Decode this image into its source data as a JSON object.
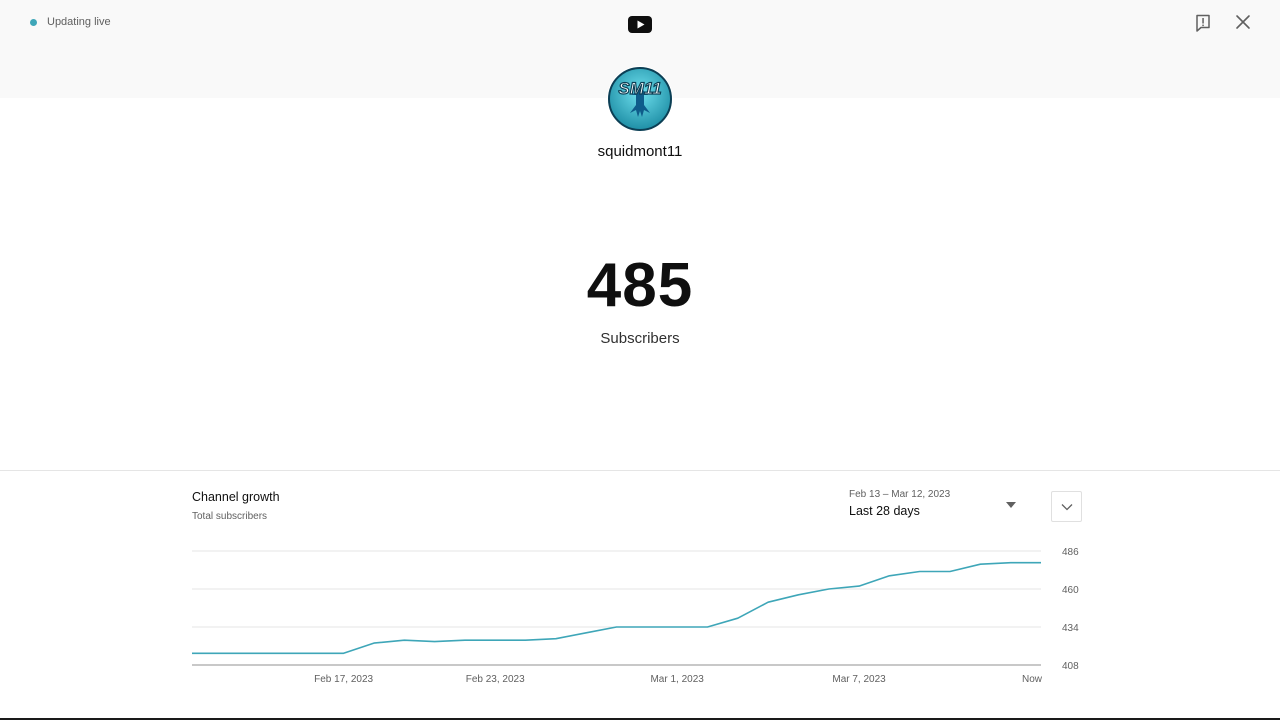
{
  "header": {
    "status_text": "Updating live",
    "status_color": "#3ea6b8",
    "logo_icon": "youtube-icon",
    "feedback_icon": "feedback-icon",
    "close_icon": "close-icon"
  },
  "channel": {
    "name": "squidmont11",
    "avatar_text": "SM11",
    "subscriber_count": "485",
    "subscriber_label": "Subscribers"
  },
  "growth": {
    "title": "Channel growth",
    "subtitle": "Total subscribers",
    "date_range": "Feb 13 – Mar 12, 2023",
    "range_label": "Last 28 days",
    "expand_icon": "chevron-down-icon"
  },
  "chart_data": {
    "type": "line",
    "title": "Channel growth",
    "ylabel": "Total subscribers",
    "ylim": [
      408,
      486
    ],
    "y_ticks": [
      408,
      434,
      460,
      486
    ],
    "x_tick_labels": [
      "Feb 17, 2023",
      "Feb 23, 2023",
      "Mar 1, 2023",
      "Mar 7, 2023",
      "Now"
    ],
    "x_tick_index": [
      5,
      10,
      16,
      22,
      28
    ],
    "color": "#3ea6b8",
    "series": [
      {
        "name": "Total subscribers",
        "values": [
          416,
          416,
          416,
          416,
          416,
          416,
          423,
          425,
          424,
          425,
          425,
          425,
          426,
          430,
          434,
          434,
          434,
          434,
          440,
          451,
          456,
          460,
          462,
          469,
          472,
          472,
          477,
          478,
          478
        ]
      }
    ]
  }
}
